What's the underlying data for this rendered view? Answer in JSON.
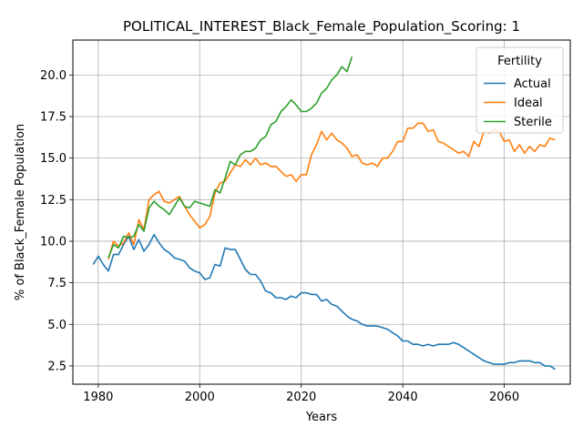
{
  "chart_data": {
    "type": "line",
    "title": "POLITICAL_INTEREST_Black_Female_Population_Scoring: 1",
    "xlabel": "Years",
    "ylabel": "% of Black_Female Population",
    "xlim": [
      1975,
      2073
    ],
    "ylim": [
      1.4,
      22.1
    ],
    "xticks": [
      1980,
      2000,
      2020,
      2040,
      2060
    ],
    "yticks": [
      2.5,
      5.0,
      7.5,
      10.0,
      12.5,
      15.0,
      17.5,
      20.0
    ],
    "ytick_labels": [
      "2.5",
      "5.0",
      "7.5",
      "10.0",
      "12.5",
      "15.0",
      "17.5",
      "20.0"
    ],
    "grid": true,
    "legend": {
      "title": "Fertility",
      "position": "top-right"
    },
    "series": [
      {
        "name": "Actual",
        "color": "#1f77b4",
        "x": [
          1979,
          1980,
          1981,
          1982,
          1983,
          1984,
          1985,
          1986,
          1987,
          1988,
          1989,
          1990,
          1991,
          1992,
          1993,
          1994,
          1995,
          1996,
          1997,
          1998,
          1999,
          2000,
          2001,
          2002,
          2003,
          2004,
          2005,
          2006,
          2007,
          2008,
          2009,
          2010,
          2011,
          2012,
          2013,
          2014,
          2015,
          2016,
          2017,
          2018,
          2019,
          2020,
          2021,
          2022,
          2023,
          2024,
          2025,
          2026,
          2027,
          2028,
          2029,
          2030,
          2031,
          2032,
          2033,
          2034,
          2035,
          2036,
          2037,
          2038,
          2039,
          2040,
          2041,
          2042,
          2043,
          2044,
          2045,
          2046,
          2047,
          2048,
          2049,
          2050,
          2051,
          2052,
          2053,
          2054,
          2055,
          2056,
          2057,
          2058,
          2059,
          2060,
          2061,
          2062,
          2063,
          2064,
          2065,
          2066,
          2067,
          2068,
          2069,
          2070
        ],
        "y": [
          8.6,
          9.1,
          8.6,
          8.2,
          9.2,
          9.2,
          9.8,
          10.3,
          9.5,
          10.1,
          9.4,
          9.8,
          10.4,
          9.9,
          9.5,
          9.3,
          9.0,
          8.9,
          8.8,
          8.4,
          8.2,
          8.1,
          7.7,
          7.8,
          8.6,
          8.5,
          9.6,
          9.5,
          9.5,
          8.9,
          8.3,
          8.0,
          8.0,
          7.6,
          7.0,
          6.9,
          6.6,
          6.6,
          6.5,
          6.7,
          6.6,
          6.9,
          6.9,
          6.8,
          6.8,
          6.4,
          6.5,
          6.2,
          6.1,
          5.8,
          5.5,
          5.3,
          5.2,
          5.0,
          4.9,
          4.9,
          4.9,
          4.8,
          4.7,
          4.5,
          4.3,
          4.0,
          4.0,
          3.8,
          3.8,
          3.7,
          3.8,
          3.7,
          3.8,
          3.8,
          3.8,
          3.9,
          3.8,
          3.6,
          3.4,
          3.2,
          3.0,
          2.8,
          2.7,
          2.6,
          2.6,
          2.6,
          2.7,
          2.7,
          2.8,
          2.8,
          2.8,
          2.7,
          2.7,
          2.5,
          2.5,
          2.3
        ]
      },
      {
        "name": "Ideal",
        "color": "#ff7f0e",
        "x": [
          1982,
          1983,
          1984,
          1985,
          1986,
          1987,
          1988,
          1989,
          1990,
          1991,
          1992,
          1993,
          1994,
          1995,
          1996,
          1997,
          1998,
          1999,
          2000,
          2001,
          2002,
          2003,
          2004,
          2005,
          2006,
          2007,
          2008,
          2009,
          2010,
          2011,
          2012,
          2013,
          2014,
          2015,
          2016,
          2017,
          2018,
          2019,
          2020,
          2021,
          2022,
          2023,
          2024,
          2025,
          2026,
          2027,
          2028,
          2029,
          2030,
          2031,
          2032,
          2033,
          2034,
          2035,
          2036,
          2037,
          2038,
          2039,
          2040,
          2041,
          2042,
          2043,
          2044,
          2045,
          2046,
          2047,
          2048,
          2049,
          2050,
          2051,
          2052,
          2053,
          2054,
          2055,
          2056,
          2057,
          2058,
          2059,
          2060,
          2061,
          2062,
          2063,
          2064,
          2065,
          2066,
          2067,
          2068,
          2069,
          2070
        ],
        "y": [
          8.9,
          10.0,
          9.7,
          9.9,
          10.5,
          9.8,
          11.3,
          10.7,
          12.5,
          12.8,
          13.0,
          12.4,
          12.3,
          12.5,
          12.7,
          12.1,
          11.6,
          11.2,
          10.8,
          11.0,
          11.5,
          12.9,
          13.5,
          13.6,
          14.1,
          14.6,
          14.5,
          14.9,
          14.6,
          15.0,
          14.6,
          14.7,
          14.5,
          14.5,
          14.2,
          13.9,
          14.0,
          13.6,
          14.0,
          14.0,
          15.2,
          15.8,
          16.6,
          16.1,
          16.5,
          16.1,
          15.9,
          15.6,
          15.1,
          15.2,
          14.7,
          14.6,
          14.7,
          14.5,
          15.0,
          15.0,
          15.4,
          16.0,
          16.0,
          16.8,
          16.8,
          17.1,
          17.1,
          16.6,
          16.7,
          16.0,
          15.9,
          15.7,
          15.5,
          15.3,
          15.4,
          15.1,
          16.0,
          15.7,
          16.6,
          16.5,
          16.7,
          16.6,
          16.0,
          16.1,
          15.4,
          15.8,
          15.3,
          15.7,
          15.4,
          15.8,
          15.7,
          16.2,
          16.1
        ]
      },
      {
        "name": "Sterile",
        "color": "#2ca02c",
        "x": [
          1982,
          1983,
          1984,
          1985,
          1986,
          1987,
          1988,
          1989,
          1990,
          1991,
          1992,
          1993,
          1994,
          1995,
          1996,
          1997,
          1998,
          1999,
          2000,
          2001,
          2002,
          2003,
          2004,
          2005,
          2006,
          2007,
          2008,
          2009,
          2010,
          2011,
          2012,
          2013,
          2014,
          2015,
          2016,
          2017,
          2018,
          2019,
          2020,
          2021,
          2022,
          2023,
          2024,
          2025,
          2026,
          2027,
          2028,
          2029,
          2030
        ],
        "y": [
          9.0,
          9.8,
          9.6,
          10.3,
          10.2,
          10.3,
          11.0,
          10.6,
          12.0,
          12.4,
          12.1,
          11.9,
          11.6,
          12.1,
          12.6,
          12.1,
          12.0,
          12.4,
          12.3,
          12.2,
          12.1,
          13.1,
          12.9,
          13.8,
          14.8,
          14.6,
          15.2,
          15.4,
          15.4,
          15.6,
          16.1,
          16.3,
          17.0,
          17.2,
          17.8,
          18.1,
          18.5,
          18.2,
          17.8,
          17.8,
          18.0,
          18.3,
          18.9,
          19.2,
          19.7,
          20.0,
          20.5,
          20.2,
          21.1
        ]
      }
    ]
  }
}
